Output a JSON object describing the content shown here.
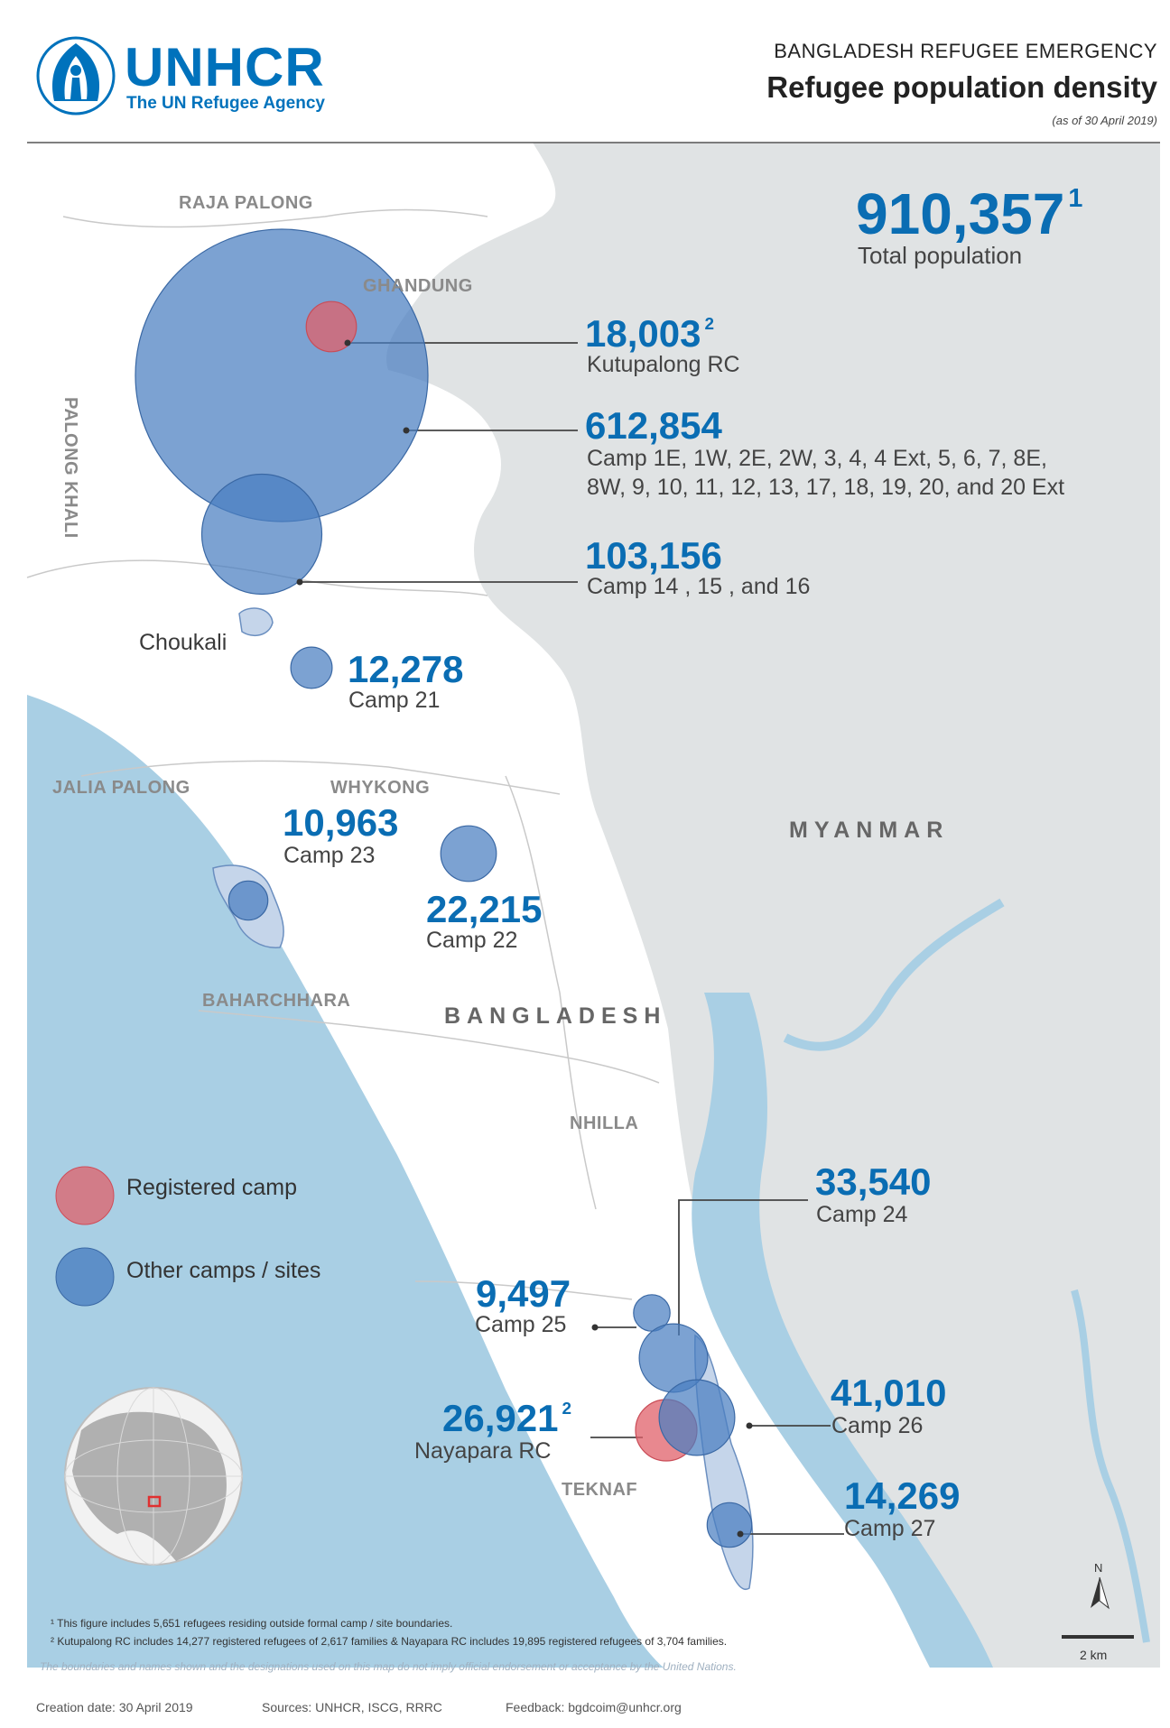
{
  "brand": {
    "name": "UNHCR",
    "tagline": "The UN Refugee Agency"
  },
  "header": {
    "emergency": "BANGLADESH REFUGEE EMERGENCY",
    "title": "Refugee population density",
    "as_of": "(as of 30 April 2019)"
  },
  "total": {
    "value": "910,357",
    "note": "1",
    "label": "Total population"
  },
  "sites": {
    "kutupalong_rc": {
      "value": "18,003",
      "note": "2",
      "label": "Kutupalong RC",
      "population": 18003,
      "type": "registered"
    },
    "kutupalong_expansion": {
      "value": "612,854",
      "label_line1": "Camp 1E, 1W, 2E, 2W, 3, 4, 4 Ext, 5, 6, 7, 8E,",
      "label_line2": "8W, 9, 10, 11, 12, 13, 17, 18, 19, 20, and 20 Ext",
      "population": 612854,
      "type": "other"
    },
    "camps_14_16": {
      "value": "103,156",
      "label": "Camp 14 , 15 , and 16",
      "population": 103156,
      "type": "other"
    },
    "camp_21": {
      "value": "12,278",
      "label": "Camp 21",
      "population": 12278,
      "type": "other"
    },
    "camp_23": {
      "value": "10,963",
      "label": "Camp 23",
      "population": 10963,
      "type": "other"
    },
    "camp_22": {
      "value": "22,215",
      "label": "Camp 22",
      "population": 22215,
      "type": "other"
    },
    "camp_24": {
      "value": "33,540",
      "label": "Camp 24",
      "population": 33540,
      "type": "other"
    },
    "camp_25": {
      "value": "9,497",
      "label": "Camp 25",
      "population": 9497,
      "type": "other"
    },
    "nayapara_rc": {
      "value": "26,921",
      "note": "2",
      "label": "Nayapara RC",
      "population": 26921,
      "type": "registered"
    },
    "camp_26": {
      "value": "41,010",
      "label": "Camp 26",
      "population": 41010,
      "type": "other"
    },
    "camp_27": {
      "value": "14,269",
      "label": "Camp 27",
      "population": 14269,
      "type": "other"
    }
  },
  "places": {
    "raja_palong": "RAJA PALONG",
    "gundung": "GHANDUNG",
    "palong_khali": "PALONG KHALI",
    "choukali": "Choukali",
    "jalia_palong": "JALIA PALONG",
    "whykong": "WHYKONG",
    "baharchhara": "BAHARCHHARA",
    "nhilla": "NHILLA",
    "teknaf": "TEKNAF",
    "myanmar": "MYANMAR",
    "bangladesh": "BANGLADESH"
  },
  "legend": {
    "registered": "Registered camp",
    "other": "Other camps / sites"
  },
  "colors": {
    "registered": "#e0606a",
    "other": "#4a7ec0",
    "sea": "#a9cfe4",
    "myanmar": "#e0e3e4",
    "brand": "#0072bc"
  },
  "footnotes": {
    "note1": "¹ This figure includes 5,651 refugees residing outside formal camp / site boundaries.",
    "note2": "² Kutupalong RC includes 14,277 registered refugees of 2,617 families & Nayapara RC includes 19,895 registered refugees of 3,704 families.",
    "disclaimer": "The boundaries and names shown and the designations used on this map do not imply official endorsement or acceptance by the United Nations."
  },
  "credits": {
    "created": "Creation date: 30 April 2019",
    "sources": "Sources: UNHCR, ISCG, RRRC",
    "feedback": "Feedback: bgdcoim@unhcr.org"
  },
  "scale": {
    "north": "N",
    "distance": "2 km"
  }
}
